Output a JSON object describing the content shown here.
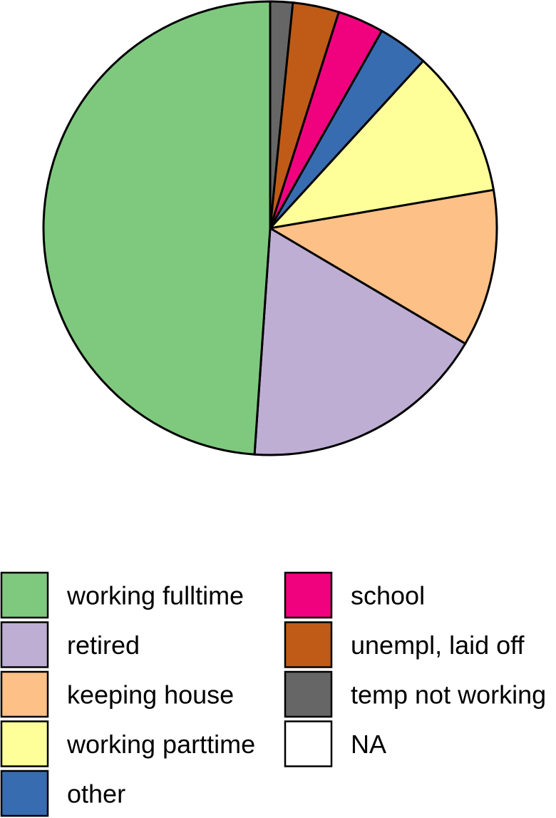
{
  "chart_data": {
    "type": "pie",
    "direction": "clockwise",
    "start": "12 o'clock",
    "legend_position": "bottom",
    "slices": [
      {
        "label": "temp not working",
        "value": 1.6,
        "color": "#666666"
      },
      {
        "label": "unempl, laid off",
        "value": 3.3,
        "color": "#bf5b17"
      },
      {
        "label": "school",
        "value": 3.3,
        "color": "#f0027f"
      },
      {
        "label": "other",
        "value": 3.6,
        "color": "#386cb0"
      },
      {
        "label": "working parttime",
        "value": 10.5,
        "color": "#ffff99"
      },
      {
        "label": "keeping house",
        "value": 11.2,
        "color": "#fdc086"
      },
      {
        "label": "retired",
        "value": 17.6,
        "color": "#beaed4"
      },
      {
        "label": "working fulltime",
        "value": 48.9,
        "color": "#7fc97f"
      },
      {
        "label": "NA",
        "value": 0,
        "color": "#ffffff"
      }
    ],
    "legend": {
      "columns": [
        [
          "working fulltime",
          "retired",
          "keeping house",
          "working parttime",
          "other"
        ],
        [
          "school",
          "unempl, laid off",
          "temp not working",
          "NA"
        ]
      ]
    }
  }
}
